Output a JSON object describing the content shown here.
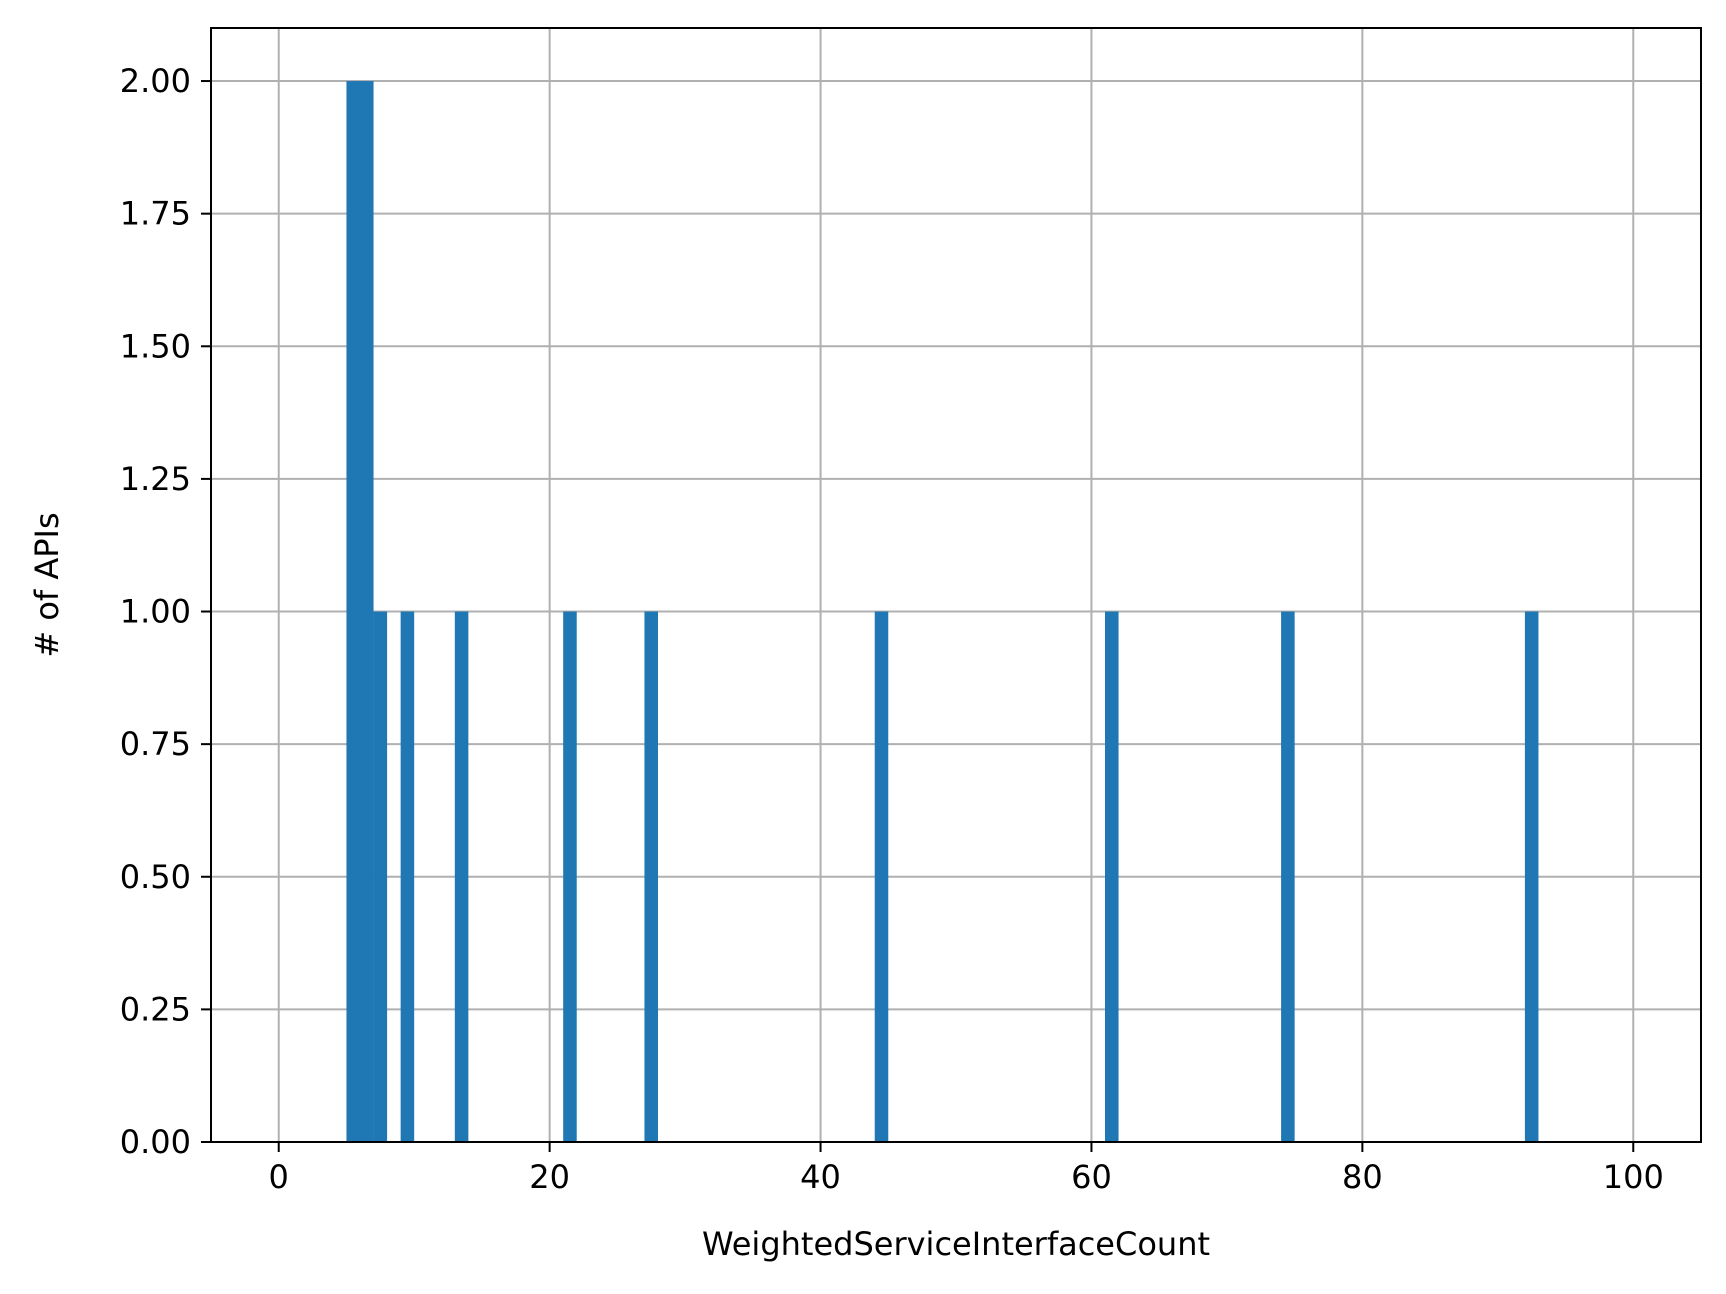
{
  "chart_data": {
    "type": "bar",
    "xlabel": "WeightedServiceInterfaceCount",
    "ylabel": "# of APIs",
    "xlim": [
      -5,
      105
    ],
    "ylim": [
      0,
      2.1
    ],
    "x_ticks": [
      0,
      20,
      40,
      60,
      80,
      100
    ],
    "x_tick_labels": [
      "0",
      "20",
      "40",
      "60",
      "80",
      "100"
    ],
    "y_ticks": [
      0,
      0.25,
      0.5,
      0.75,
      1.0,
      1.25,
      1.5,
      1.75,
      2.0
    ],
    "y_tick_labels": [
      "0.00",
      "0.25",
      "0.50",
      "0.75",
      "1.00",
      "1.25",
      "1.50",
      "1.75",
      "2.00"
    ],
    "grid": true,
    "bar_color": "#1f77b4",
    "bin_width": 1.0,
    "bins": [
      {
        "x_start": 5,
        "x_end": 6,
        "value": 2
      },
      {
        "x_start": 6,
        "x_end": 7,
        "value": 2
      },
      {
        "x_start": 7,
        "x_end": 8,
        "value": 1
      },
      {
        "x_start": 9,
        "x_end": 10,
        "value": 1
      },
      {
        "x_start": 13,
        "x_end": 14,
        "value": 1
      },
      {
        "x_start": 21,
        "x_end": 22,
        "value": 1
      },
      {
        "x_start": 27,
        "x_end": 28,
        "value": 1
      },
      {
        "x_start": 44,
        "x_end": 45,
        "value": 1
      },
      {
        "x_start": 61,
        "x_end": 62,
        "value": 1
      },
      {
        "x_start": 74,
        "x_end": 75,
        "value": 1
      },
      {
        "x_start": 92,
        "x_end": 93,
        "value": 1
      }
    ]
  }
}
